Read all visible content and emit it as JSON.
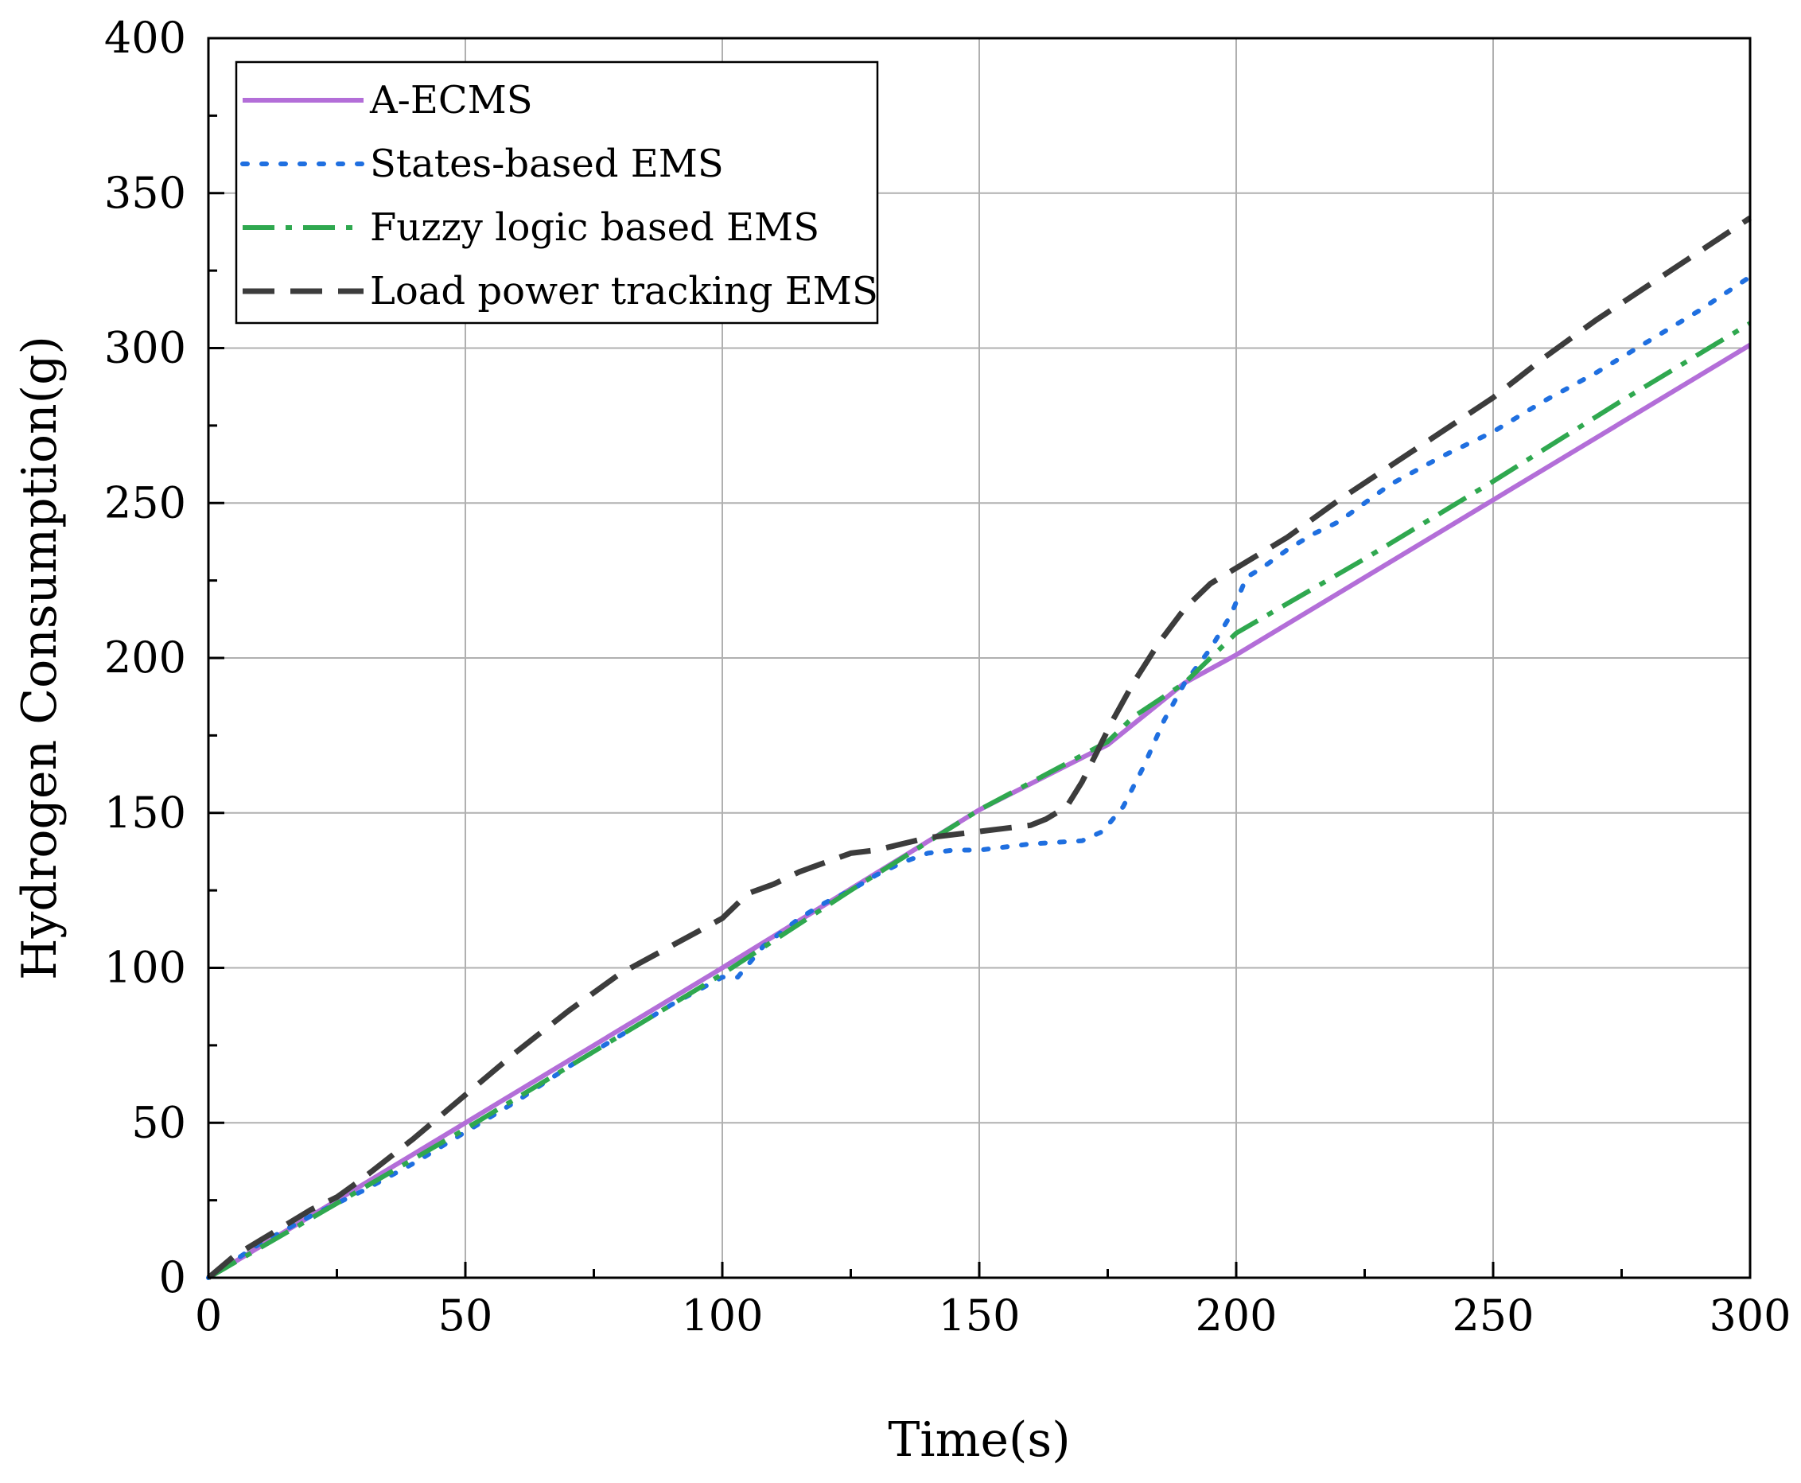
{
  "chart_data": {
    "type": "line",
    "title": "",
    "xlabel": "Time(s)",
    "ylabel": "Hydrogen Consumption(g)",
    "xlim": [
      0,
      300
    ],
    "ylim": [
      0,
      400
    ],
    "xticks": [
      0,
      50,
      100,
      150,
      200,
      250,
      300
    ],
    "yticks": [
      0,
      50,
      100,
      150,
      200,
      250,
      300,
      350,
      400
    ],
    "grid": true,
    "legend_position": "top-left",
    "series": [
      {
        "name": "A-ECMS",
        "color": "#b36ed8",
        "style": "solid",
        "x": [
          0,
          50,
          100,
          150,
          175,
          190,
          200,
          250,
          300
        ],
        "y": [
          0,
          50,
          100,
          151,
          172,
          192,
          201,
          251,
          301
        ]
      },
      {
        "name": "States-based EMS",
        "color": "#1f6fe0",
        "style": "dotted",
        "x": [
          0,
          10,
          20,
          30,
          40,
          50,
          60,
          70,
          80,
          90,
          100,
          103,
          108,
          115,
          120,
          125,
          130,
          135,
          140,
          145,
          150,
          160,
          170,
          174,
          178,
          182,
          186,
          190,
          195,
          199,
          202,
          205,
          210,
          215,
          220,
          230,
          240,
          250,
          260,
          270,
          280,
          290,
          300
        ],
        "y": [
          0,
          11,
          20,
          28,
          37,
          47,
          57,
          68,
          78,
          88,
          97,
          97,
          107,
          116,
          121,
          125,
          130,
          134,
          137,
          138,
          138,
          140,
          141,
          144,
          152,
          165,
          180,
          192,
          203,
          214,
          226,
          229,
          235,
          240,
          244,
          256,
          265,
          273,
          283,
          292,
          302,
          312,
          323
        ]
      },
      {
        "name": "Fuzzy logic based EMS",
        "color": "#2fa84f",
        "style": "dashdot",
        "x": [
          0,
          25,
          50,
          75,
          100,
          125,
          150,
          175,
          180,
          190,
          200,
          225,
          250,
          275,
          300
        ],
        "y": [
          0,
          24,
          48,
          73,
          98,
          125,
          151,
          173,
          181,
          192,
          208,
          232,
          257,
          283,
          308
        ]
      },
      {
        "name": "Load power tracking EMS",
        "color": "#3c3c3c",
        "style": "dashed",
        "x": [
          0,
          5,
          10,
          15,
          20,
          25,
          30,
          40,
          50,
          60,
          70,
          80,
          90,
          100,
          105,
          110,
          115,
          120,
          125,
          130,
          135,
          140,
          145,
          150,
          155,
          160,
          163,
          167,
          170,
          173,
          176,
          180,
          185,
          190,
          195,
          200,
          210,
          220,
          230,
          240,
          250,
          260,
          270,
          280,
          290,
          300
        ],
        "y": [
          0,
          7,
          12,
          17,
          22,
          26,
          32,
          45,
          59,
          73,
          86,
          98,
          107,
          116,
          124,
          127,
          131,
          134,
          137,
          138,
          140,
          142,
          143,
          144,
          145,
          146,
          148,
          152,
          160,
          170,
          180,
          192,
          205,
          216,
          224,
          229,
          239,
          251,
          262,
          273,
          284,
          297,
          309,
          320,
          331,
          342
        ]
      }
    ]
  }
}
